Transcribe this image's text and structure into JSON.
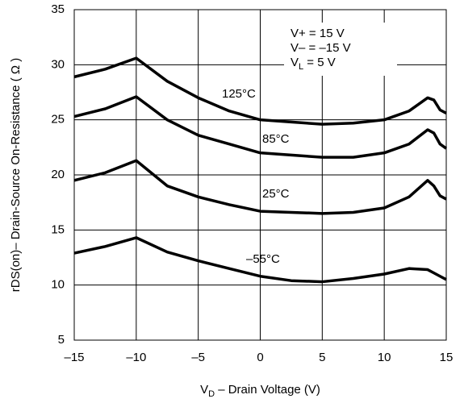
{
  "chart_data": {
    "type": "line",
    "x_label": {
      "main": "V",
      "sub": "D",
      "rest": " – Drain Voltage (V)"
    },
    "y_label": "rDS(on)– Drain-Source On-Resistance ( Ω )",
    "x": [
      -15,
      -12.5,
      -10,
      -7.5,
      -5,
      -2.5,
      0,
      2.5,
      5,
      7.5,
      10,
      12,
      13.5,
      14,
      14.5,
      15
    ],
    "series": [
      {
        "name": "125°C",
        "color": "#000000",
        "values": [
          28.9,
          29.6,
          30.6,
          28.5,
          27,
          25.8,
          25,
          24.8,
          24.6,
          24.7,
          25,
          25.8,
          27,
          26.8,
          25.9,
          25.6
        ]
      },
      {
        "name": "85°C",
        "color": "#000000",
        "values": [
          25.3,
          26,
          27.1,
          25,
          23.6,
          22.8,
          22,
          21.8,
          21.6,
          21.6,
          22,
          22.8,
          24.1,
          23.8,
          22.8,
          22.4
        ]
      },
      {
        "name": "25°C",
        "color": "#000000",
        "values": [
          19.5,
          20.2,
          21.3,
          19,
          18,
          17.3,
          16.7,
          16.6,
          16.5,
          16.6,
          17,
          18,
          19.5,
          19,
          18.1,
          17.8
        ]
      },
      {
        "name": "–55°C",
        "color": "#000000",
        "values": [
          12.9,
          13.5,
          14.3,
          13,
          12.2,
          11.5,
          10.8,
          10.4,
          10.3,
          10.6,
          11,
          11.5,
          11.4,
          11.1,
          10.8,
          10.5
        ]
      }
    ],
    "conditions": [
      {
        "main": "V+ = 15 V",
        "sub": "",
        "rest": ""
      },
      {
        "main": "V– = –15 V",
        "sub": "",
        "rest": ""
      },
      {
        "main": "V",
        "sub": "L",
        "rest": " = 5 V"
      }
    ],
    "xlim": [
      -15,
      15
    ],
    "xticks": [
      {
        "value": -15,
        "label": "–15"
      },
      {
        "value": -10,
        "label": "–10"
      },
      {
        "value": -5,
        "label": "–5"
      },
      0,
      5,
      10,
      15
    ],
    "ylim": [
      5,
      35
    ],
    "yticks": [
      5,
      10,
      15,
      20,
      25,
      30,
      35
    ],
    "grid": true
  }
}
